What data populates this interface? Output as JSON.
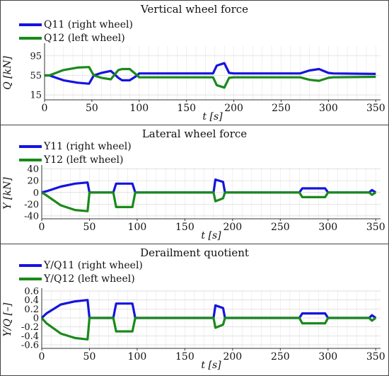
{
  "chart_data": [
    {
      "type": "line",
      "title": "Vertical wheel force",
      "xlabel": "t [s]",
      "ylabel": "Q [kN]",
      "xlim": [
        0,
        355
      ],
      "ylim": [
        5,
        115
      ],
      "xticks": [
        0,
        50,
        100,
        150,
        200,
        250,
        300,
        350
      ],
      "yticks": [
        15,
        55,
        95
      ],
      "grid": true,
      "legend_position": "top-left",
      "series": [
        {
          "name": "Q11 (right wheel)",
          "color": "#1414e0",
          "x": [
            0,
            5,
            20,
            35,
            47,
            52,
            60,
            70,
            78,
            82,
            90,
            98,
            100,
            150,
            178,
            182,
            190,
            195,
            200,
            270,
            280,
            290,
            300,
            305,
            350
          ],
          "y": [
            55,
            55,
            45,
            40,
            38,
            55,
            60,
            64,
            50,
            45,
            45,
            55,
            59,
            59,
            59,
            75,
            80,
            60,
            59,
            59,
            65,
            68,
            60,
            59,
            58
          ]
        },
        {
          "name": "Q12 (left wheel)",
          "color": "#1a8a1a",
          "x": [
            0,
            5,
            20,
            35,
            47,
            52,
            60,
            70,
            78,
            82,
            90,
            98,
            100,
            150,
            178,
            182,
            190,
            195,
            200,
            270,
            280,
            290,
            300,
            305,
            350
          ],
          "y": [
            55,
            55,
            66,
            71,
            72,
            55,
            50,
            47,
            66,
            68,
            68,
            55,
            51,
            51,
            51,
            35,
            30,
            50,
            51,
            51,
            46,
            44,
            50,
            51,
            52
          ]
        }
      ]
    },
    {
      "type": "line",
      "title": "Lateral wheel force",
      "xlabel": "t [s]",
      "ylabel": "Y [kN]",
      "xlim": [
        0,
        355
      ],
      "ylim": [
        -45,
        42
      ],
      "xticks": [
        0,
        50,
        100,
        150,
        200,
        250,
        300,
        350
      ],
      "yticks": [
        -40,
        -20,
        0,
        20,
        40
      ],
      "grid": true,
      "legend_position": "top-left",
      "series": [
        {
          "name": "Y11 (right wheel)",
          "color": "#1414e0",
          "x": [
            0,
            5,
            20,
            35,
            48,
            50,
            75,
            78,
            95,
            98,
            180,
            182,
            190,
            192,
            270,
            273,
            297,
            300,
            343,
            346,
            350
          ],
          "y": [
            0,
            2,
            10,
            15,
            17,
            0,
            0,
            15,
            15,
            0,
            0,
            22,
            18,
            0,
            0,
            7,
            7,
            0,
            0,
            4,
            0
          ]
        },
        {
          "name": "Y12 (left wheel)",
          "color": "#1a8a1a",
          "x": [
            0,
            5,
            20,
            35,
            48,
            50,
            75,
            78,
            95,
            98,
            180,
            182,
            190,
            192,
            270,
            273,
            297,
            300,
            343,
            346,
            350
          ],
          "y": [
            0,
            -5,
            -22,
            -30,
            -32,
            0,
            0,
            -25,
            -25,
            0,
            0,
            -15,
            -10,
            0,
            0,
            -8,
            -8,
            0,
            0,
            -4,
            0
          ]
        }
      ]
    },
    {
      "type": "line",
      "title": "Derailment quotient",
      "xlabel": "t [s]",
      "ylabel": "Y/Q [–]",
      "xlim": [
        0,
        355
      ],
      "ylim": [
        -0.68,
        0.6
      ],
      "xticks": [
        0,
        50,
        100,
        150,
        200,
        250,
        300,
        350
      ],
      "yticks": [
        -0.6,
        -0.4,
        -0.2,
        0.0,
        0.2,
        0.4,
        0.6
      ],
      "grid": true,
      "legend_position": "top-left",
      "series": [
        {
          "name": "Y/Q11 (right wheel)",
          "color": "#1414e0",
          "x": [
            0,
            5,
            20,
            35,
            48,
            50,
            75,
            78,
            95,
            98,
            180,
            182,
            190,
            192,
            270,
            273,
            297,
            300,
            343,
            346,
            350
          ],
          "y": [
            0,
            0.1,
            0.3,
            0.37,
            0.4,
            0,
            0,
            0.32,
            0.32,
            0,
            0,
            0.28,
            0.22,
            0,
            0,
            0.1,
            0.1,
            0,
            0,
            0.06,
            0
          ]
        },
        {
          "name": "Y/Q12 (left wheel)",
          "color": "#1a8a1a",
          "x": [
            0,
            5,
            20,
            35,
            48,
            50,
            75,
            78,
            95,
            98,
            180,
            182,
            190,
            192,
            270,
            273,
            297,
            300,
            343,
            346,
            350
          ],
          "y": [
            0,
            -0.12,
            -0.35,
            -0.45,
            -0.48,
            0,
            0,
            -0.3,
            -0.3,
            0,
            0,
            -0.22,
            -0.15,
            0,
            0,
            -0.12,
            -0.12,
            0,
            0,
            -0.06,
            0
          ]
        }
      ]
    }
  ]
}
